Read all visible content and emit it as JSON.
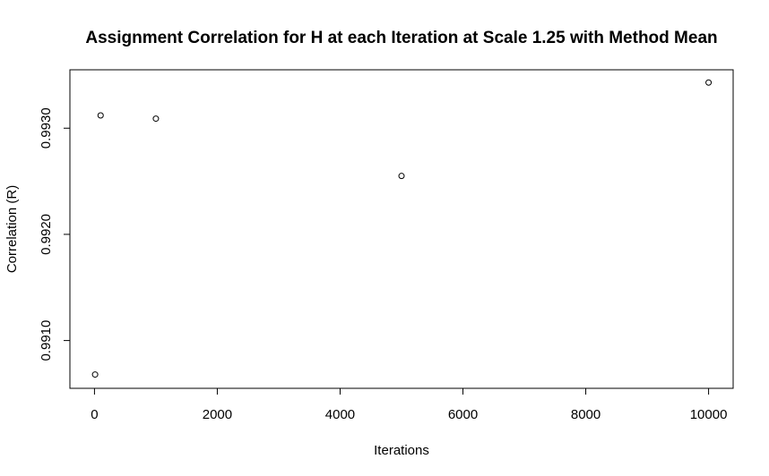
{
  "chart_data": {
    "type": "scatter",
    "title": "Assignment Correlation for H at each Iteration at Scale 1.25 with Method Mean",
    "xlabel": "Iterations",
    "ylabel": "Correlation (R)",
    "x_ticks": [
      0,
      2000,
      4000,
      6000,
      8000,
      10000
    ],
    "x_tick_labels": [
      "0",
      "2000",
      "4000",
      "6000",
      "8000",
      "10000"
    ],
    "y_ticks": [
      0.991,
      0.992,
      0.993
    ],
    "y_tick_labels": [
      "0.9910",
      "0.9920",
      "0.9930"
    ],
    "xlim": [
      -400,
      10400
    ],
    "ylim": [
      0.99055,
      0.99355
    ],
    "grid": false,
    "legend": "none",
    "points": [
      {
        "x": 10,
        "y": 0.99068
      },
      {
        "x": 100,
        "y": 0.99312
      },
      {
        "x": 1000,
        "y": 0.99309
      },
      {
        "x": 5000,
        "y": 0.99255
      },
      {
        "x": 10000,
        "y": 0.99343
      }
    ]
  }
}
